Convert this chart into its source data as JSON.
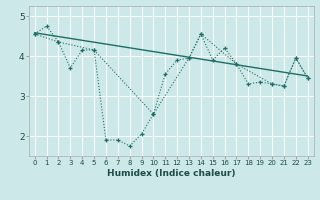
{
  "xlabel": "Humidex (Indice chaleur)",
  "background_color": "#cce8e8",
  "grid_color": "#b8d8d8",
  "line_color": "#1e6e65",
  "x_ticks": [
    0,
    1,
    2,
    3,
    4,
    5,
    6,
    7,
    8,
    9,
    10,
    11,
    12,
    13,
    14,
    15,
    16,
    17,
    18,
    19,
    20,
    21,
    22,
    23
  ],
  "ylim": [
    1.5,
    5.25
  ],
  "xlim": [
    -0.5,
    23.5
  ],
  "yticks": [
    2,
    3,
    4,
    5
  ],
  "line1_x": [
    0,
    1,
    2,
    3,
    4,
    5,
    6,
    7,
    8,
    9,
    10,
    11,
    12,
    13,
    14,
    15,
    16,
    17,
    18,
    19,
    20,
    21,
    22,
    23
  ],
  "line1_y": [
    4.55,
    4.75,
    4.35,
    3.7,
    4.15,
    4.15,
    1.9,
    1.9,
    1.75,
    2.05,
    2.55,
    3.55,
    3.9,
    3.95,
    4.55,
    3.9,
    4.2,
    3.8,
    3.3,
    3.35,
    3.3,
    3.25,
    3.95,
    3.45
  ],
  "line2_x": [
    0,
    2,
    5,
    10,
    13,
    14,
    17,
    20,
    21,
    22,
    23
  ],
  "line2_y": [
    4.55,
    4.35,
    4.15,
    2.55,
    3.95,
    4.55,
    3.8,
    3.3,
    3.25,
    3.95,
    3.45
  ],
  "trend_x": [
    0,
    23
  ],
  "trend_y": [
    4.58,
    3.5
  ]
}
